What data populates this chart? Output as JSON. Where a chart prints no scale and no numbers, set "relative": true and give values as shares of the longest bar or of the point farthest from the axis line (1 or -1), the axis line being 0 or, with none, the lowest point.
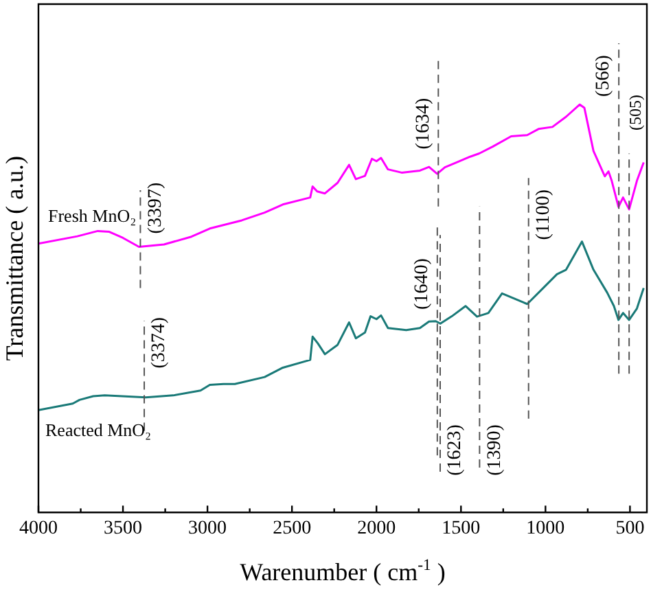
{
  "chart_data": {
    "type": "line",
    "relative": true,
    "xlabel": "Warenumber ( cm$^{-1}$ )",
    "ylabel": "Transmittance ( a.u.)",
    "xlim": [
      4000,
      400
    ],
    "xticks": [
      4000,
      {
        "value": 3750,
        "label": null
      },
      3500,
      {
        "value": 3250,
        "label": null
      },
      3000,
      {
        "value": 2750,
        "label": null
      },
      2500,
      {
        "value": 2250,
        "label": null
      },
      2000,
      {
        "value": 1750,
        "label": null
      },
      1500,
      {
        "value": 1250,
        "label": null
      },
      1000,
      {
        "value": 750,
        "label": null
      },
      500
    ],
    "grid": false,
    "legend": false,
    "marker": "none",
    "line_style": "solid",
    "series": [
      {
        "name": "Fresh MnO₂",
        "color": "#ff00ff",
        "x": [
          4000,
          3770,
          3649,
          3581,
          3500,
          3405,
          3257,
          3095,
          2986,
          2797,
          2662,
          2554,
          2392,
          2378,
          2351,
          2305,
          2230,
          2162,
          2122,
          2068,
          2027,
          2000,
          1973,
          1932,
          1851,
          1743,
          1689,
          1641,
          1595,
          1527,
          1446,
          1392,
          1311,
          1203,
          1108,
          1041,
          959,
          878,
          797,
          770,
          716,
          649,
          627,
          608,
          568,
          541,
          505,
          459,
          419
        ],
        "values": [
          0.659,
          0.677,
          0.69,
          0.688,
          0.673,
          0.651,
          0.657,
          0.676,
          0.696,
          0.716,
          0.735,
          0.755,
          0.772,
          0.799,
          0.787,
          0.782,
          0.808,
          0.852,
          0.817,
          0.825,
          0.867,
          0.861,
          0.869,
          0.841,
          0.833,
          0.838,
          0.847,
          0.83,
          0.846,
          0.858,
          0.872,
          0.88,
          0.897,
          0.922,
          0.925,
          0.94,
          0.945,
          0.97,
          1,
          0.992,
          0.886,
          0.824,
          0.836,
          0.813,
          0.749,
          0.772,
          0.743,
          0.813,
          0.858
        ]
      },
      {
        "name": "Reacted MnO₂",
        "color": "#1a7a78",
        "x": [
          4000,
          3797,
          3757,
          3676,
          3608,
          3365,
          3203,
          3041,
          2986,
          2905,
          2838,
          2662,
          2554,
          2392,
          2378,
          2346,
          2305,
          2230,
          2162,
          2122,
          2068,
          2035,
          2000,
          1973,
          1932,
          1824,
          1743,
          1689,
          1649,
          1622,
          1554,
          1473,
          1405,
          1338,
          1257,
          1108,
          1014,
          932,
          878,
          784,
          716,
          635,
          595,
          568,
          541,
          505,
          459,
          419
        ],
        "values": [
          0.251,
          0.267,
          0.276,
          0.285,
          0.287,
          0.282,
          0.287,
          0.299,
          0.313,
          0.315,
          0.315,
          0.332,
          0.355,
          0.374,
          0.431,
          0.414,
          0.388,
          0.411,
          0.466,
          0.427,
          0.441,
          0.481,
          0.474,
          0.483,
          0.452,
          0.447,
          0.452,
          0.468,
          0.469,
          0.463,
          0.481,
          0.506,
          0.48,
          0.489,
          0.537,
          0.511,
          0.55,
          0.584,
          0.595,
          0.664,
          0.595,
          0.539,
          0.506,
          0.472,
          0.489,
          0.472,
          0.5,
          0.55
        ]
      }
    ],
    "ref_lines": [
      {
        "axis": "x",
        "value": 3397,
        "label": "(3397)"
      },
      {
        "axis": "x",
        "value": 1634,
        "label": "(1634)"
      },
      {
        "axis": "x",
        "value": 566,
        "label": "(566)"
      },
      {
        "axis": "x",
        "value": 505,
        "label": "(505)"
      },
      {
        "axis": "x",
        "value": 1100,
        "label": "(1100)"
      },
      {
        "axis": "x",
        "value": 3374,
        "label": "(3374)"
      },
      {
        "axis": "x",
        "value": 1640,
        "label": "(1640)"
      },
      {
        "axis": "x",
        "value": 1623,
        "label": "(1623)"
      },
      {
        "axis": "x",
        "value": 1390,
        "label": "(1390)"
      }
    ]
  }
}
